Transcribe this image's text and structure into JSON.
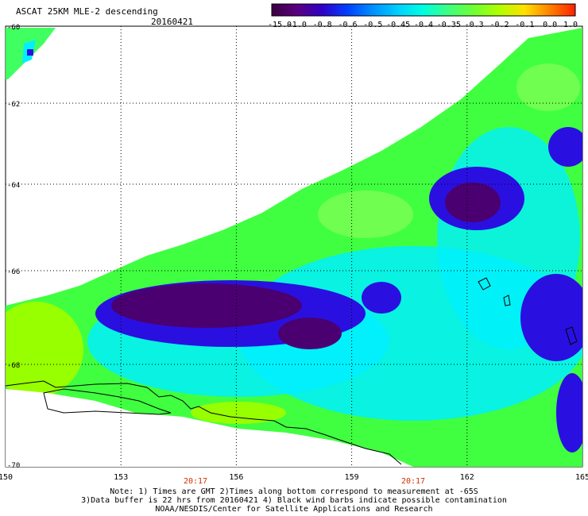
{
  "header": {
    "title": "ASCAT 25KM MLE-2 descending",
    "date": "20160421"
  },
  "colorbar": {
    "labels": [
      "-15.0",
      "-1.0",
      "-0.8",
      "-0.6",
      "-0.5",
      "-0.45",
      "-0.4",
      "-0.35",
      "-0.3",
      "-0.2",
      "-0.1",
      "0.0",
      "1.0"
    ],
    "colors": [
      "#3a0040",
      "#5a0080",
      "#3000c8",
      "#0040ff",
      "#0090ff",
      "#00d0ff",
      "#00ffe0",
      "#40ff80",
      "#70ff30",
      "#b0ff00",
      "#ffe000",
      "#ff8000",
      "#ff2000"
    ]
  },
  "axes": {
    "x_ticks": [
      "150",
      "153",
      "156",
      "159",
      "162",
      "165"
    ],
    "y_ticks": [
      "-60",
      "-62",
      "-64",
      "-66",
      "-68",
      "-70"
    ],
    "time_labels": [
      "20:17",
      "20:17"
    ]
  },
  "notes": [
    "Note: 1) Times are GMT 2)Times along bottom correspond to measurement at -65S",
    "3)Data buffer is 22 hrs from 20160421 4) Black wind barbs indicate possible contamination",
    "NOAA/NESDIS/Center for Satellite Applications and Research"
  ],
  "palette": {
    "dark_purple": "#4b0072",
    "blue": "#2a10e0",
    "cyan": "#00f0ff",
    "green": "#40ff40",
    "lime": "#98ff00",
    "time_label": "#d03000"
  }
}
